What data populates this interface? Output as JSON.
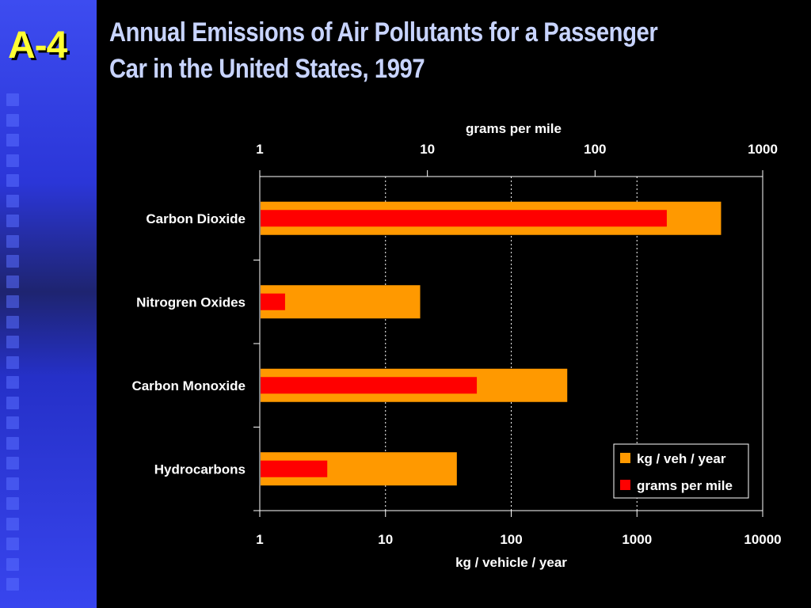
{
  "slide": {
    "label": "A-4",
    "title_line1": "Annual Emissions of Air Pollutants for a Passenger",
    "title_line2": "Car in the United States, 1997"
  },
  "colors": {
    "background": "#000000",
    "sidebar": "#3040e0",
    "label": "#ffff33",
    "title": "#c8d4ff",
    "kg_series": "#ff9900",
    "gpm_series": "#ff0000"
  },
  "chart_data": {
    "type": "bar",
    "orientation": "horizontal",
    "categories": [
      "Carbon Dioxide",
      "Nitrogren Oxides",
      "Carbon Monoxide",
      "Hydrocarbons"
    ],
    "series": [
      {
        "name": "kg / veh / year",
        "axis": "bottom",
        "values": [
          4600,
          18.6,
          275,
          36.4
        ]
      },
      {
        "name": "grams per mile",
        "axis": "top",
        "values": [
          265,
          1.4,
          19.5,
          2.5
        ]
      }
    ],
    "xlabel": "kg / vehicle / year",
    "x2label": "grams per mile",
    "x_scale": "log",
    "xlim": [
      1,
      10000
    ],
    "x2lim": [
      1,
      1000
    ],
    "x_ticks": [
      "1",
      "10",
      "100",
      "1000",
      "10000"
    ],
    "x2_ticks": [
      "1",
      "10",
      "100",
      "1000"
    ],
    "grid": "vertical dotted",
    "legend_position": "bottom-right"
  }
}
